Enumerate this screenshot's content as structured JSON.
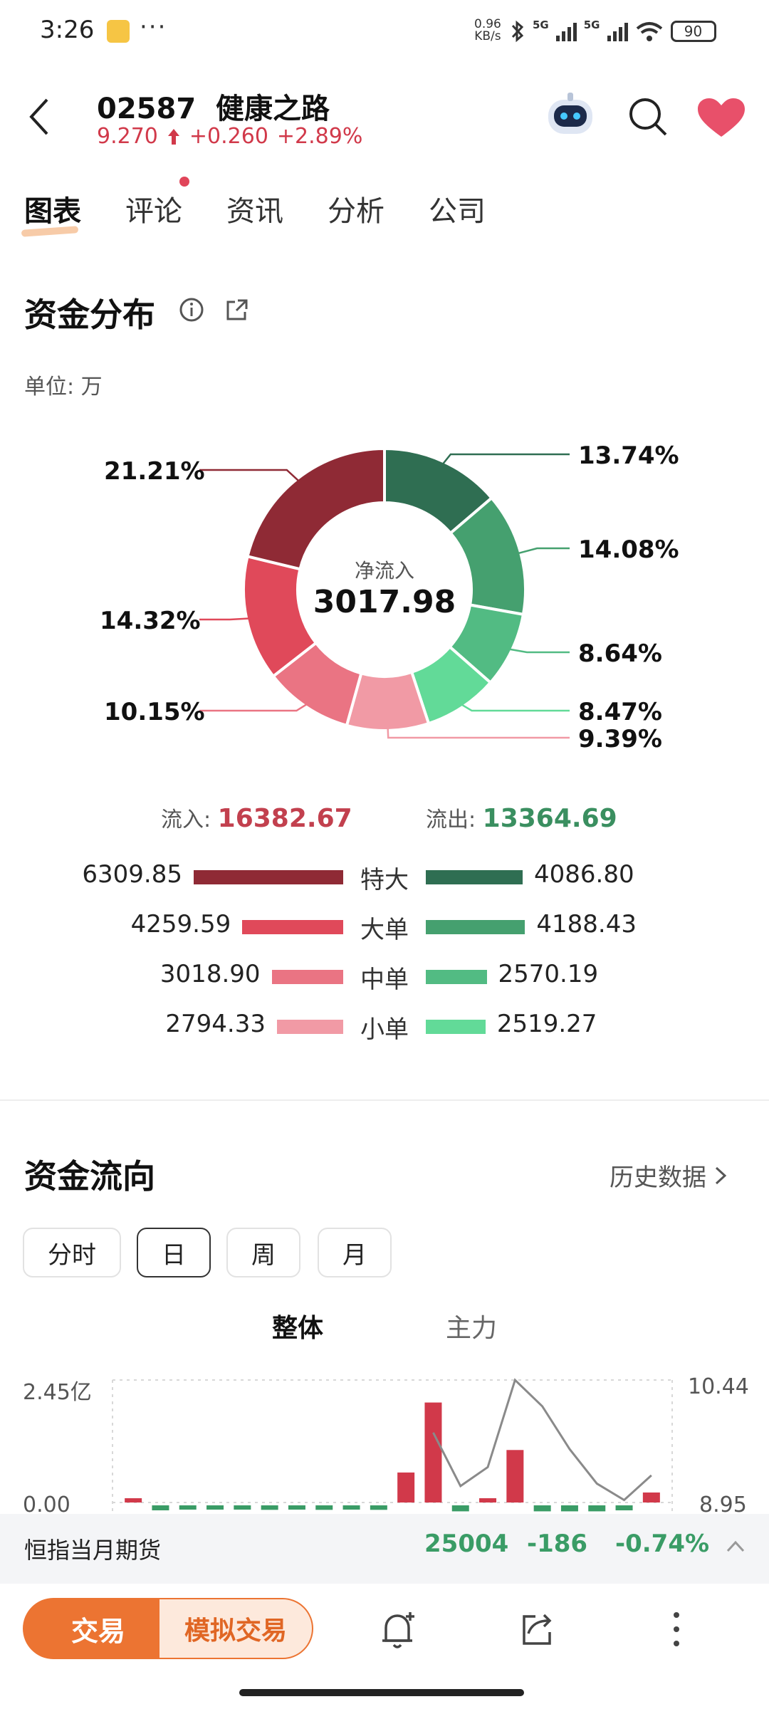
{
  "status": {
    "time": "3:26",
    "dots": "···",
    "speed_value": "0.96",
    "speed_unit": "KB/s",
    "net1": "5G",
    "net2": "5G",
    "battery": "90"
  },
  "header": {
    "code": "02587",
    "name": "健康之路",
    "price": "9.270",
    "change": "+0.260",
    "change_pct": "+2.89%"
  },
  "tabs": [
    {
      "label": "图表",
      "active": true
    },
    {
      "label": "评论",
      "dot": true
    },
    {
      "label": "资讯"
    },
    {
      "label": "分析"
    },
    {
      "label": "公司"
    }
  ],
  "fund_distribution": {
    "title": "资金分布",
    "unit": "单位: 万",
    "center_label": "净流入",
    "center_value": "3017.98",
    "pct_labels": {
      "in_super": "21.21%",
      "in_large": "14.32%",
      "in_medium": "10.15%",
      "out_super": "13.74%",
      "out_large": "14.08%",
      "out_medium": "8.64%",
      "out_small": "8.47%",
      "in_small": "9.39%"
    },
    "inflow_label": "流入:",
    "inflow_value": "16382.67",
    "outflow_label": "流出:",
    "outflow_value": "13364.69",
    "rows": [
      {
        "category": "特大",
        "in": "6309.85",
        "out": "4086.80"
      },
      {
        "category": "大单",
        "in": "4259.59",
        "out": "4188.43"
      },
      {
        "category": "中单",
        "in": "3018.90",
        "out": "2570.19"
      },
      {
        "category": "小单",
        "in": "2794.33",
        "out": "2519.27"
      }
    ]
  },
  "colors": {
    "in_super": "#8f2a35",
    "in_large": "#e0495a",
    "in_medium": "#ea7483",
    "in_small": "#f19aa5",
    "out_super": "#2f6e52",
    "out_large": "#45a06f",
    "out_medium": "#52bb83",
    "out_small": "#62da98",
    "up": "#d1394a",
    "down": "#3a9c66"
  },
  "fund_flow": {
    "title": "资金流向",
    "history_link": "历史数据",
    "periods": [
      {
        "label": "分时"
      },
      {
        "label": "日",
        "active": true
      },
      {
        "label": "周"
      },
      {
        "label": "月"
      }
    ],
    "subtabs": [
      {
        "label": "整体",
        "active": true
      },
      {
        "label": "主力"
      }
    ],
    "y_left_top": "2.45亿",
    "y_left_bottom": "0.00",
    "y_right_top": "10.44",
    "y_right_bottom": "8.95"
  },
  "chart_data": {
    "type": "bar",
    "ylim_left": [
      0,
      2.45
    ],
    "ylim_right": [
      8.95,
      10.44
    ],
    "series": [
      {
        "values": [
          0.05,
          -0.1,
          -0.05,
          -0.02,
          -0.02,
          -0.09,
          -0.05,
          -0.09,
          -0.05,
          -0.09,
          0.6,
          2.0,
          -0.12,
          0.06,
          1.05,
          -0.12,
          -0.12,
          -0.12,
          -0.1,
          0.2
        ]
      },
      {
        "values": [
          null,
          null,
          null,
          null,
          null,
          null,
          null,
          null,
          null,
          null,
          null,
          9.8,
          9.15,
          9.38,
          10.44,
          10.12,
          9.6,
          9.18,
          8.98,
          9.28
        ]
      }
    ]
  },
  "ticker": {
    "name": "恒指当月期货",
    "value": "25004",
    "change": "-186",
    "change_pct": "-0.74%"
  },
  "bottom_bar": {
    "trade": "交易",
    "sim_trade": "模拟交易"
  }
}
